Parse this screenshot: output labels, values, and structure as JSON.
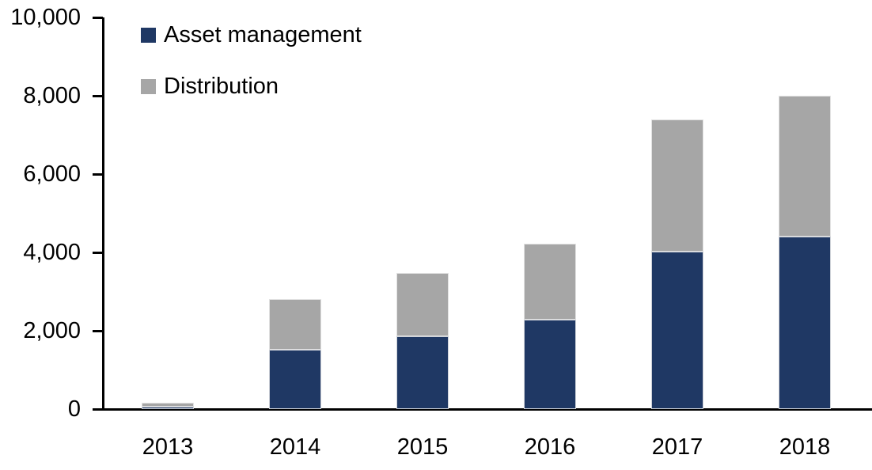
{
  "chart_data": {
    "type": "bar",
    "stacked": true,
    "title": "",
    "xlabel": "",
    "ylabel": "",
    "categories": [
      "2013",
      "2014",
      "2015",
      "2016",
      "2017",
      "2018"
    ],
    "series": [
      {
        "name": "Asset management",
        "color": "#1f3864",
        "values": [
          80,
          1520,
          1860,
          2290,
          4030,
          4400
        ]
      },
      {
        "name": "Distribution",
        "color": "#a6a6a6",
        "values": [
          90,
          1300,
          1630,
          1930,
          3360,
          3600
        ]
      }
    ],
    "totals": [
      170,
      2820,
      3490,
      4220,
      7390,
      8000
    ],
    "ylim": [
      0,
      10000
    ],
    "yticks": [
      0,
      2000,
      4000,
      6000,
      8000,
      10000
    ],
    "ytick_labels": [
      "0",
      "2,000",
      "4,000",
      "6,000",
      "8,000",
      "10,000"
    ],
    "grid": false,
    "legend_position": "top-left-inside",
    "axis_color": "#000000",
    "background": "#ffffff"
  },
  "legend": {
    "items": [
      {
        "label": "Asset management",
        "color": "#1f3864"
      },
      {
        "label": "Distribution",
        "color": "#a6a6a6"
      }
    ]
  }
}
